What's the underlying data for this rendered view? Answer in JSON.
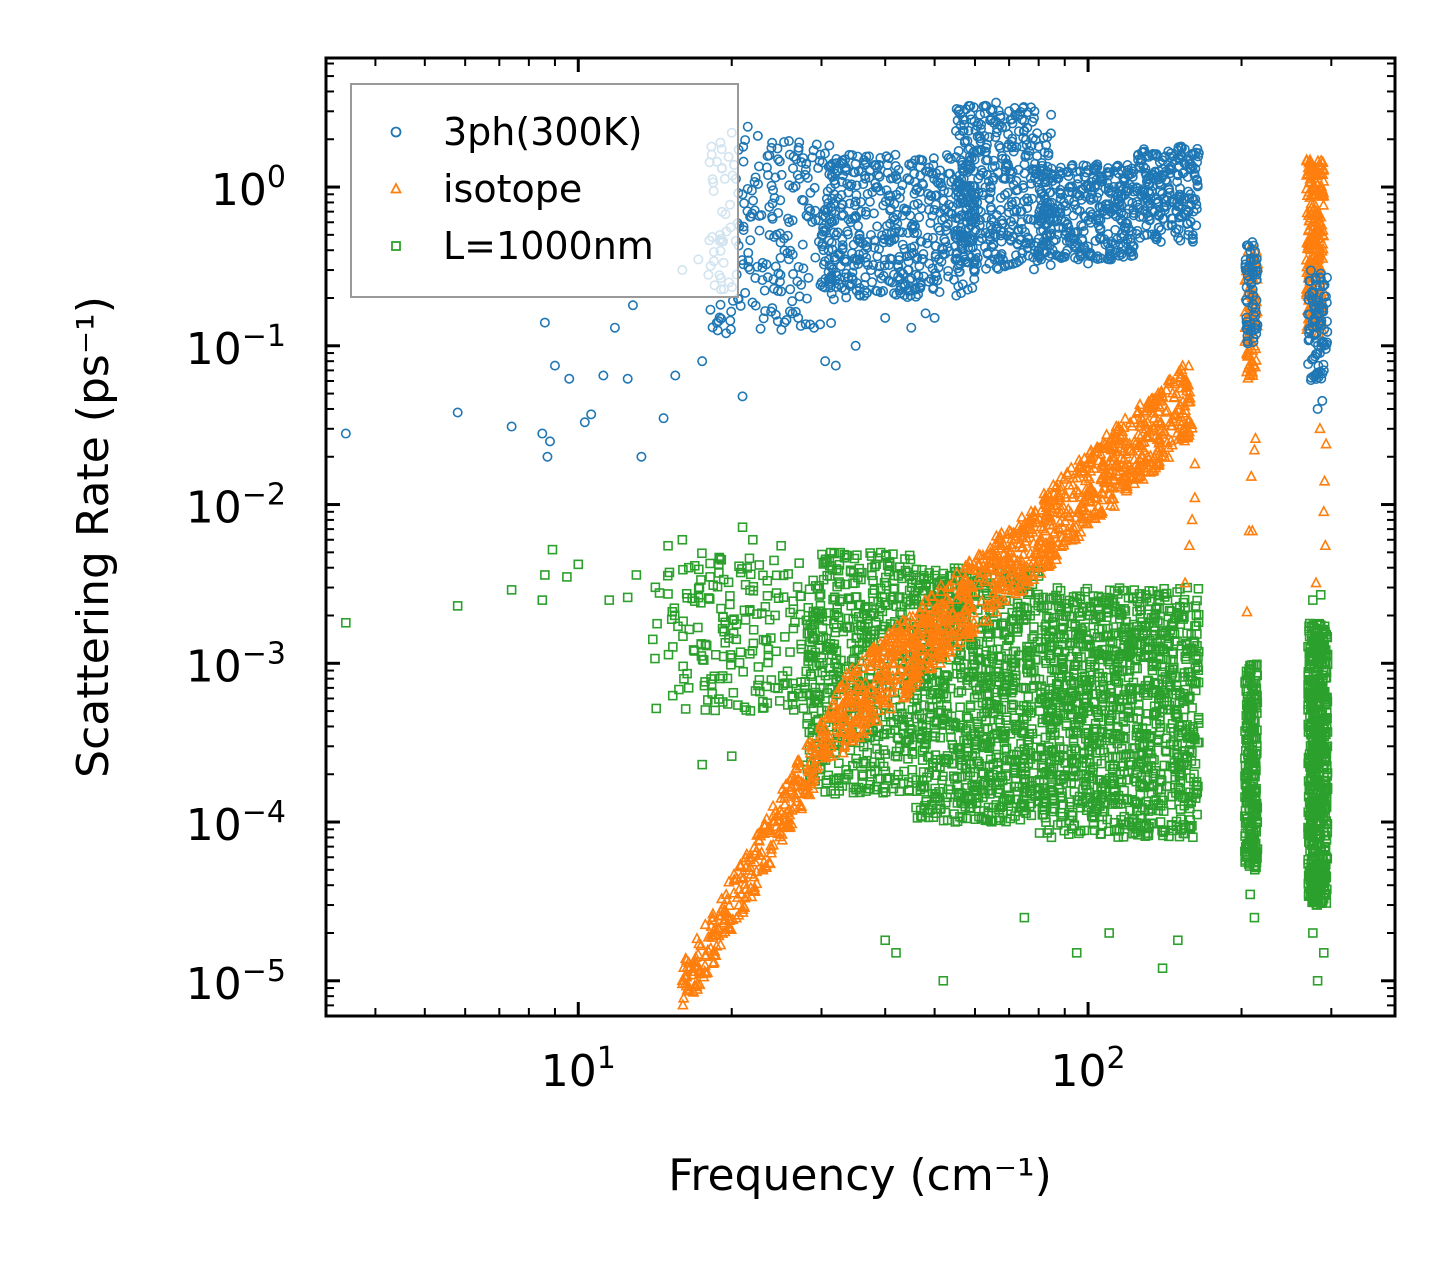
{
  "chart_data": {
    "type": "scatter",
    "title": "",
    "xlabel": "Frequency (cm⁻¹)",
    "ylabel": "Scattering Rate (ps⁻¹)",
    "xscale": "log",
    "yscale": "log",
    "xlim": [
      3.2,
      400
    ],
    "ylim": [
      6e-06,
      6.5
    ],
    "x_ticks": [
      {
        "value": 10,
        "base": "10",
        "exp": "1"
      },
      {
        "value": 100,
        "base": "10",
        "exp": "2"
      }
    ],
    "y_ticks": [
      {
        "value": 1,
        "base": "10",
        "exp": "0"
      },
      {
        "value": 0.1,
        "base": "10",
        "exp": "−1"
      },
      {
        "value": 0.01,
        "base": "10",
        "exp": "−2"
      },
      {
        "value": 0.001,
        "base": "10",
        "exp": "−3"
      },
      {
        "value": 0.0001,
        "base": "10",
        "exp": "−4"
      },
      {
        "value": 1e-05,
        "base": "10",
        "exp": "−5"
      }
    ],
    "legend_position": "top-left",
    "series": [
      {
        "name": "3ph(300K)",
        "marker": "circle",
        "color": "#1f77b4",
        "points": [
          [
            3.5,
            0.028
          ],
          [
            5.8,
            0.038
          ],
          [
            7.4,
            0.031
          ],
          [
            8.5,
            0.028
          ],
          [
            8.7,
            0.02
          ],
          [
            8.8,
            0.025
          ],
          [
            9.0,
            0.075
          ],
          [
            9.6,
            0.062
          ],
          [
            10.3,
            0.033
          ],
          [
            10.6,
            0.037
          ],
          [
            11.2,
            0.065
          ],
          [
            12.5,
            0.062
          ],
          [
            13.3,
            0.02
          ],
          [
            14.7,
            0.035
          ],
          [
            8.6,
            0.14
          ],
          [
            11.8,
            0.13
          ],
          [
            12.8,
            0.18
          ],
          [
            15.5,
            0.065
          ],
          [
            17.5,
            0.08
          ],
          [
            21.0,
            0.048
          ],
          [
            19.5,
            0.12
          ],
          [
            16.0,
            0.3
          ],
          [
            17.2,
            0.35
          ],
          [
            18.0,
            0.28
          ],
          [
            20.0,
            2.2
          ],
          [
            21.5,
            2.4
          ],
          [
            22.5,
            2.1
          ],
          [
            24.0,
            1.9
          ],
          [
            26.0,
            1.6
          ],
          [
            28.0,
            1.4
          ],
          [
            25.0,
            0.22
          ],
          [
            27.0,
            0.15
          ],
          [
            29.0,
            0.13
          ],
          [
            30.5,
            0.08
          ],
          [
            32.0,
            0.075
          ],
          [
            35.0,
            0.1
          ],
          [
            40.0,
            0.15
          ],
          [
            45.0,
            0.13
          ],
          [
            48.0,
            0.16
          ],
          [
            50.0,
            0.15
          ],
          [
            60.0,
            0.3
          ],
          [
            66.0,
            3.4
          ],
          [
            70.0,
            3.0
          ],
          [
            75.0,
            2.6
          ],
          [
            80.0,
            1.8
          ],
          [
            100.0,
            0.33
          ],
          [
            110.0,
            0.35
          ],
          [
            120.0,
            0.95
          ],
          [
            140.0,
            1.3
          ],
          [
            150.0,
            1.7
          ],
          [
            160.0,
            1.6
          ],
          [
            205,
            0.3
          ],
          [
            210,
            0.45
          ],
          [
            212,
            0.35
          ],
          [
            275,
            0.2
          ],
          [
            280,
            0.12
          ],
          [
            285,
            0.09
          ],
          [
            290,
            0.07
          ],
          [
            282,
            0.04
          ],
          [
            288,
            0.045
          ],
          [
            278,
            0.18
          ]
        ],
        "clusters": [
          {
            "x": [
              18,
              32
            ],
            "y": [
              0.12,
              2.0
            ],
            "n": 240
          },
          {
            "x": [
              30,
              60
            ],
            "y": [
              0.2,
              1.6
            ],
            "n": 500
          },
          {
            "x": [
              55,
              85
            ],
            "y": [
              0.3,
              3.3
            ],
            "n": 420
          },
          {
            "x": [
              80,
              125
            ],
            "y": [
              0.35,
              1.4
            ],
            "n": 350
          },
          {
            "x": [
              125,
              165
            ],
            "y": [
              0.45,
              1.8
            ],
            "n": 220
          },
          {
            "x": [
              203,
              215
            ],
            "y": [
              0.1,
              0.45
            ],
            "n": 60
          },
          {
            "x": [
              270,
              295
            ],
            "y": [
              0.06,
              0.3
            ],
            "n": 90
          }
        ]
      },
      {
        "name": "isotope",
        "marker": "triangle",
        "color": "#ff7f0e",
        "points": [
          [
            16.0,
            1e-05
          ],
          [
            16.5,
            1.2e-05
          ],
          [
            17.0,
            1.4e-05
          ],
          [
            205,
            0.0021
          ],
          [
            207,
            0.0068
          ],
          [
            210,
            0.0068
          ],
          [
            209,
            0.015
          ],
          [
            212,
            0.022
          ],
          [
            213,
            0.026
          ],
          [
            280,
            0.0032
          ],
          [
            292,
            0.0055
          ],
          [
            290,
            0.009
          ],
          [
            291,
            0.014
          ],
          [
            293,
            0.024
          ],
          [
            285,
            0.03
          ],
          [
            155,
            0.0032
          ],
          [
            158,
            0.0055
          ],
          [
            160,
            0.008
          ],
          [
            162,
            0.011
          ],
          [
            162,
            0.018
          ]
        ],
        "trend": [
          {
            "x": [
              16,
              33
            ],
            "y": [
              1e-05,
              0.0006
            ],
            "n": 330,
            "spread": 0.35
          },
          {
            "x": [
              33,
              160
            ],
            "y": [
              0.0006,
              0.06
            ],
            "n": 1100,
            "spread": 0.5
          }
        ],
        "clusters": [
          {
            "x": [
              203,
              215
            ],
            "y": [
              0.06,
              0.4
            ],
            "n": 90
          },
          {
            "x": [
              268,
              290
            ],
            "y": [
              0.12,
              1.5
            ],
            "n": 220
          }
        ]
      },
      {
        "name": "L=1000nm",
        "marker": "square",
        "color": "#2ca02c",
        "points": [
          [
            3.5,
            0.0018
          ],
          [
            5.8,
            0.0023
          ],
          [
            7.4,
            0.0029
          ],
          [
            8.5,
            0.0025
          ],
          [
            8.6,
            0.0036
          ],
          [
            8.9,
            0.0052
          ],
          [
            9.5,
            0.0035
          ],
          [
            10.0,
            0.0042
          ],
          [
            11.5,
            0.0025
          ],
          [
            12.5,
            0.0026
          ],
          [
            13.0,
            0.0036
          ],
          [
            15.0,
            0.0055
          ],
          [
            16.0,
            0.006
          ],
          [
            17.5,
            0.00023
          ],
          [
            20.0,
            0.00026
          ],
          [
            21.0,
            0.0072
          ],
          [
            22.0,
            0.006
          ],
          [
            25.0,
            0.0055
          ],
          [
            40.0,
            1.8e-05
          ],
          [
            42.0,
            1.5e-05
          ],
          [
            52.0,
            1e-05
          ],
          [
            75.0,
            2.5e-05
          ],
          [
            95.0,
            1.5e-05
          ],
          [
            110.0,
            2e-05
          ],
          [
            140.0,
            1.2e-05
          ],
          [
            150.0,
            1.8e-05
          ],
          [
            208,
            3.5e-05
          ],
          [
            212,
            2.5e-05
          ],
          [
            276,
            2e-05
          ],
          [
            282,
            1e-05
          ],
          [
            290,
            1.5e-05
          ],
          [
            286,
            0.0027
          ],
          [
            276,
            0.0025
          ]
        ],
        "clusters": [
          {
            "x": [
              14,
              30
            ],
            "y": [
              0.0005,
              0.005
            ],
            "n": 220
          },
          {
            "x": [
              28,
              45
            ],
            "y": [
              0.00015,
              0.005
            ],
            "n": 500
          },
          {
            "x": [
              45,
              80
            ],
            "y": [
              0.0001,
              0.004
            ],
            "n": 900
          },
          {
            "x": [
              80,
              165
            ],
            "y": [
              8e-05,
              0.003
            ],
            "n": 1200
          },
          {
            "x": [
              203,
              215
            ],
            "y": [
              5e-05,
              0.001
            ],
            "n": 260
          },
          {
            "x": [
              270,
              295
            ],
            "y": [
              3e-05,
              0.0018
            ],
            "n": 600
          }
        ]
      }
    ]
  }
}
